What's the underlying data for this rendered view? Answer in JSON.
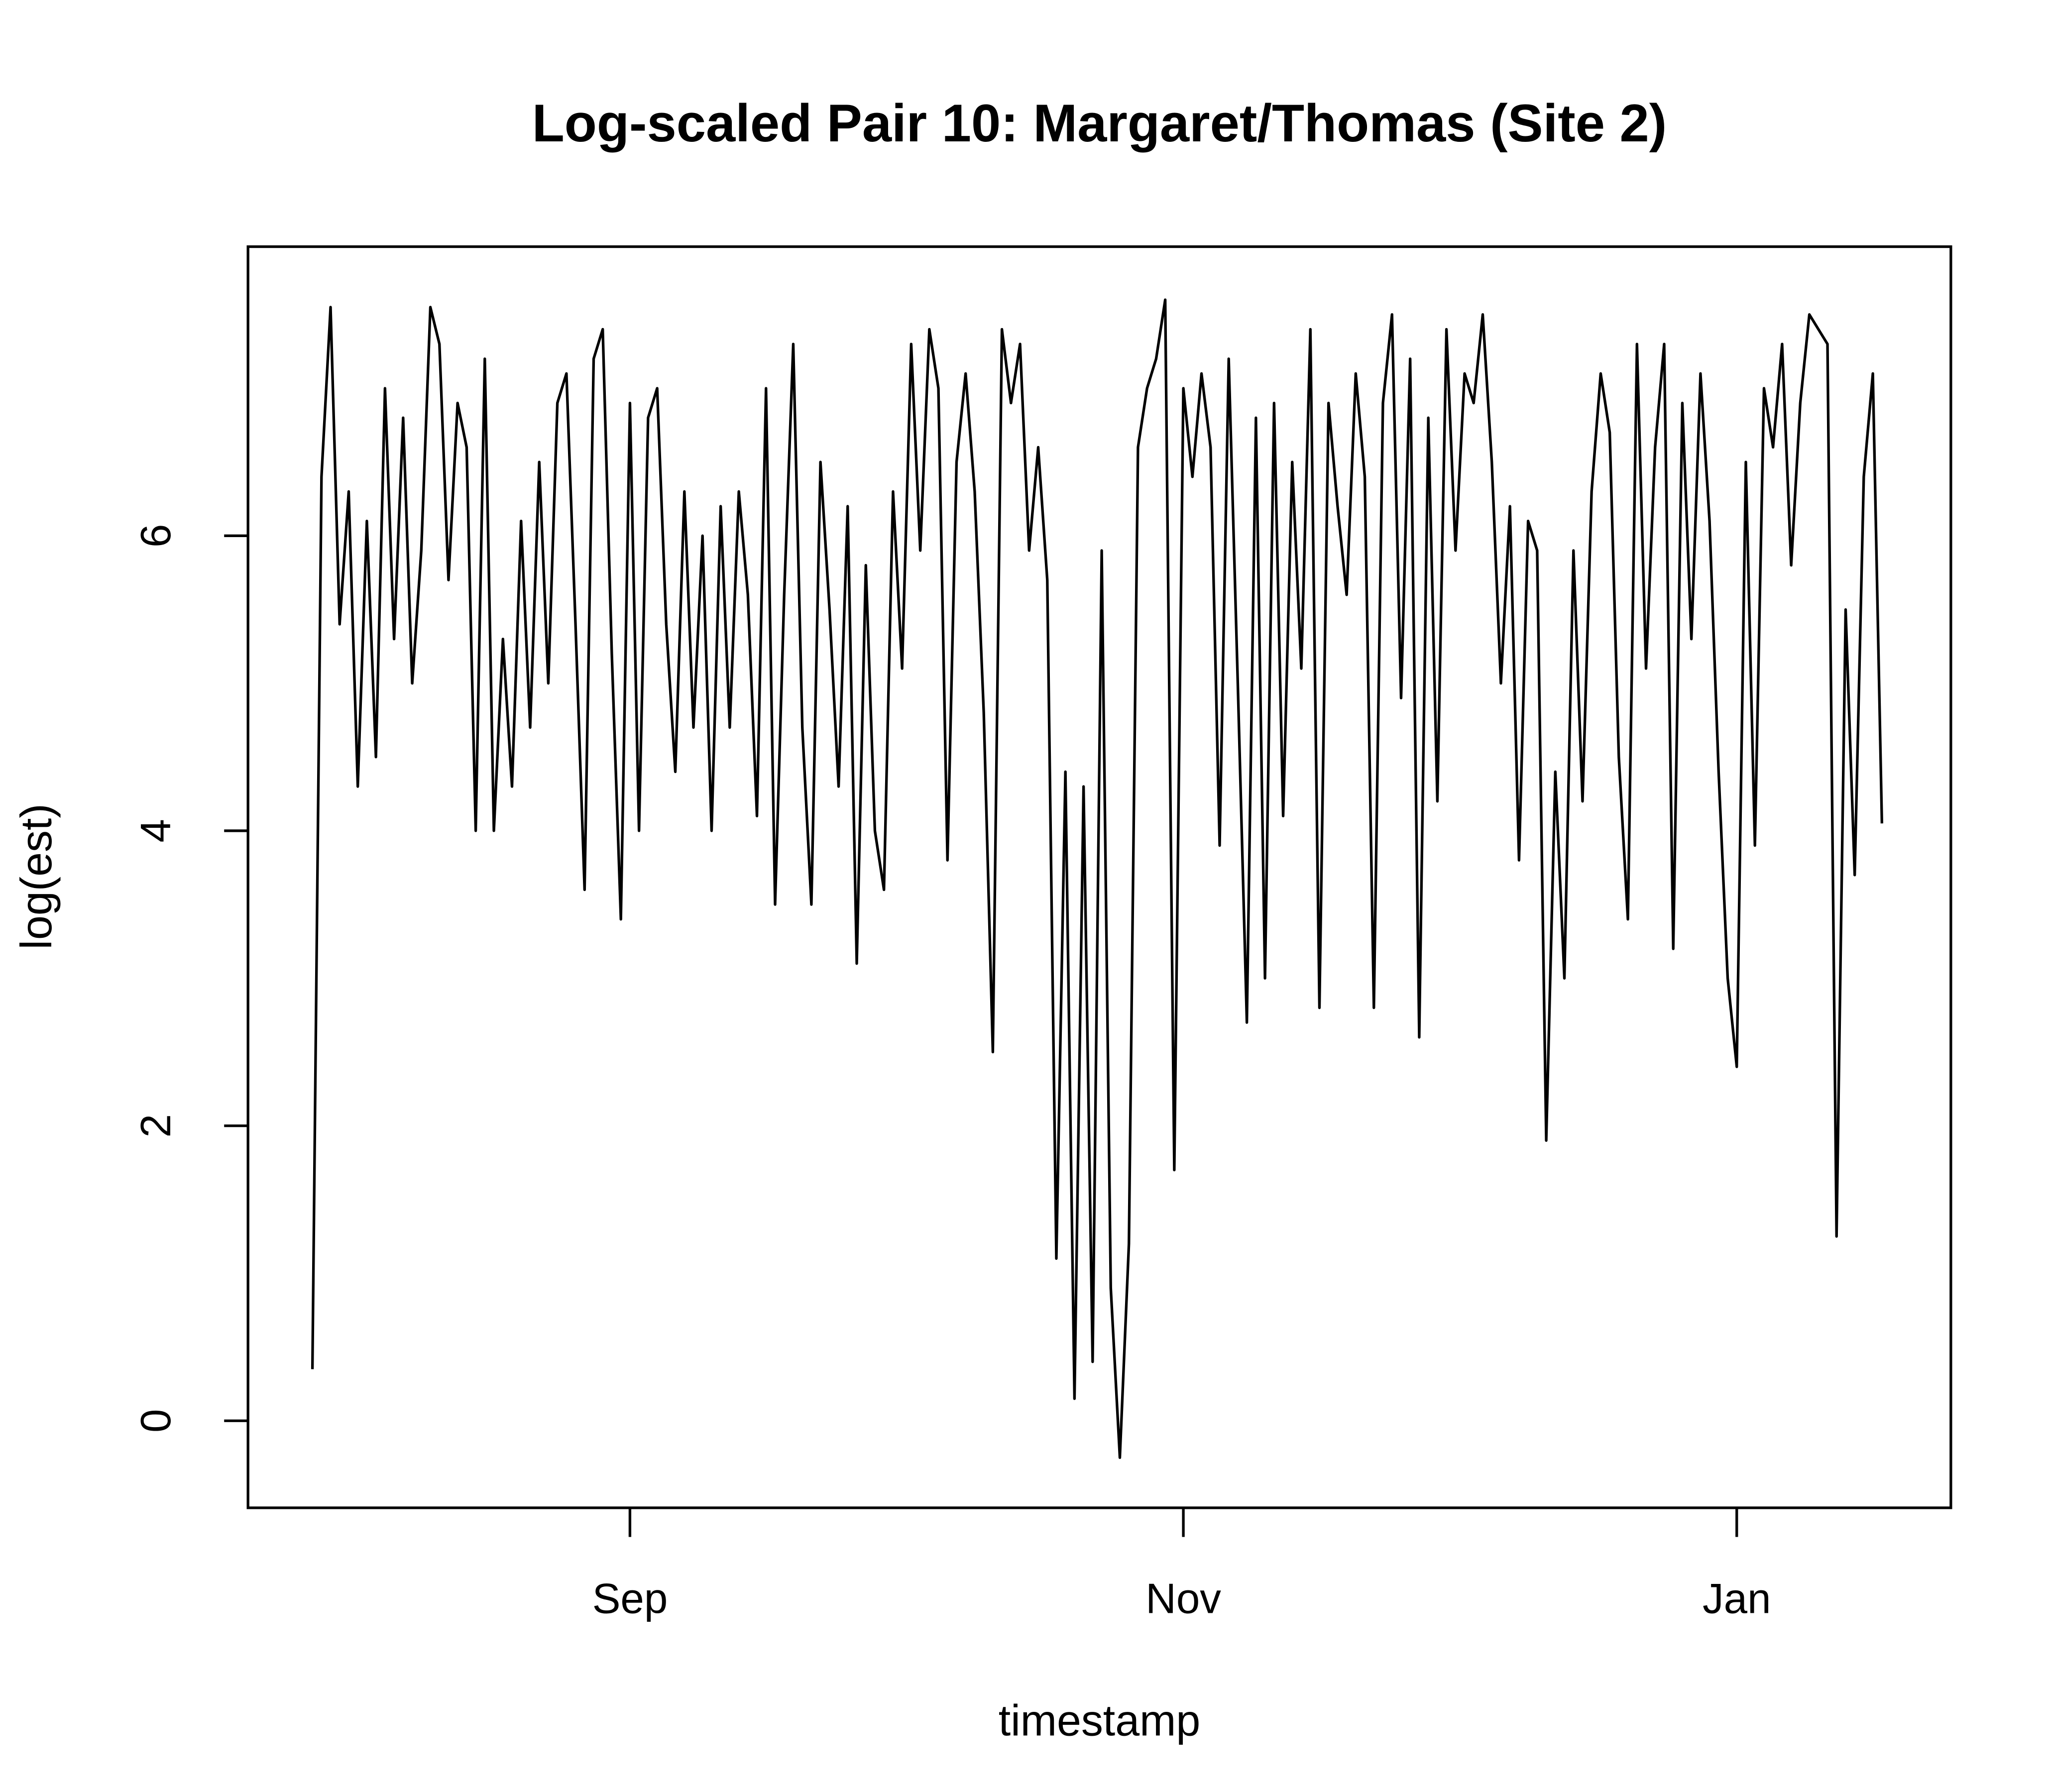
{
  "chart_data": {
    "type": "line",
    "title": "Log-scaled Pair 10: Margaret/Thomas (Site 2)",
    "x_label": "timestamp",
    "y_label": "log(est)",
    "xlim": [
      -42.1,
      145.6
    ],
    "xticks": [
      {
        "value": 0,
        "label": "Sep"
      },
      {
        "value": 61,
        "label": "Nov"
      },
      {
        "value": 122,
        "label": "Jan"
      }
    ],
    "ylim": [
      -0.59,
      7.96
    ],
    "yticks": [
      0,
      2,
      4,
      6
    ],
    "series": [
      {
        "color": "#000000",
        "x": [
          -35,
          -34,
          -33,
          -32,
          -31,
          -30,
          -29,
          -28,
          -27,
          -26,
          -25,
          -24,
          -23,
          -22,
          -21,
          -20,
          -19,
          -18,
          -17,
          -16,
          -15,
          -14,
          -13,
          -12,
          -11,
          -10,
          -9,
          -8,
          -7,
          -6,
          -5,
          -4,
          -3,
          -2,
          -1,
          0,
          1,
          2,
          3,
          4,
          5,
          6,
          7,
          8,
          9,
          10,
          11,
          12,
          13,
          14,
          15,
          16,
          17,
          18,
          19,
          20,
          21,
          22,
          23,
          24,
          25,
          26,
          27,
          28,
          29,
          30,
          31,
          32,
          33,
          34,
          35,
          36,
          37,
          38,
          39,
          40,
          41,
          42,
          43,
          44,
          45,
          46,
          47,
          48,
          49,
          50,
          51,
          52,
          53,
          54,
          55,
          56,
          57,
          58,
          59,
          60,
          61,
          62,
          63,
          64,
          65,
          66,
          67,
          68,
          69,
          70,
          71,
          72,
          73,
          74,
          75,
          76,
          77,
          78,
          79,
          80,
          81,
          82,
          83,
          84,
          85,
          86,
          87,
          88,
          89,
          90,
          91,
          92,
          93,
          94,
          95,
          96,
          97,
          98,
          99,
          100,
          101,
          102,
          103,
          104,
          105,
          106,
          107,
          108,
          109,
          110,
          111,
          112,
          113,
          114,
          115,
          116,
          117,
          118,
          119,
          120,
          121,
          122,
          123,
          124,
          125,
          126,
          127,
          128,
          129,
          130,
          131,
          132,
          133,
          134,
          135,
          136,
          137,
          138
        ],
        "values": [
          0.35,
          6.4,
          7.55,
          5.4,
          6.3,
          4.3,
          6.1,
          4.5,
          7.0,
          5.3,
          6.8,
          5.0,
          5.9,
          7.55,
          7.3,
          5.7,
          6.9,
          6.6,
          4.0,
          7.2,
          4.0,
          5.3,
          4.3,
          6.1,
          4.7,
          6.5,
          5.0,
          6.9,
          7.1,
          5.4,
          3.6,
          7.2,
          7.4,
          5.2,
          3.4,
          6.9,
          4.0,
          6.8,
          7.0,
          5.4,
          4.4,
          6.3,
          4.7,
          6.0,
          4.0,
          6.2,
          4.7,
          6.3,
          5.6,
          4.1,
          7.0,
          3.5,
          5.6,
          7.3,
          4.7,
          3.5,
          6.5,
          5.5,
          4.3,
          6.2,
          3.1,
          5.8,
          4.0,
          3.6,
          6.3,
          5.1,
          7.3,
          5.9,
          7.4,
          7.0,
          3.8,
          6.5,
          7.1,
          6.3,
          4.8,
          2.5,
          7.4,
          6.9,
          7.3,
          5.9,
          6.6,
          5.7,
          1.1,
          4.4,
          0.15,
          4.3,
          0.4,
          5.9,
          0.9,
          -0.25,
          1.2,
          6.6,
          7.0,
          7.2,
          7.6,
          1.7,
          7.0,
          6.4,
          7.1,
          6.6,
          3.9,
          7.2,
          5.0,
          2.7,
          6.8,
          3.0,
          6.9,
          4.1,
          6.5,
          5.1,
          7.4,
          2.8,
          6.9,
          6.2,
          5.6,
          7.1,
          6.4,
          2.8,
          6.9,
          7.5,
          4.9,
          7.2,
          2.6,
          6.8,
          4.2,
          7.4,
          5.9,
          7.1,
          6.9,
          7.5,
          6.5,
          5.0,
          6.2,
          3.8,
          6.1,
          5.9,
          1.9,
          4.4,
          3.0,
          5.9,
          4.2,
          6.3,
          7.1,
          6.7,
          4.5,
          3.4,
          7.3,
          5.1,
          6.6,
          7.3,
          3.2,
          6.9,
          5.3,
          7.1,
          6.1,
          4.4,
          3.0,
          2.4,
          6.5,
          3.9,
          7.0,
          6.6,
          7.3,
          5.8,
          6.9,
          7.5,
          7.4,
          7.3,
          1.25,
          5.5,
          3.7,
          6.4,
          7.1,
          4.05
        ]
      }
    ]
  }
}
